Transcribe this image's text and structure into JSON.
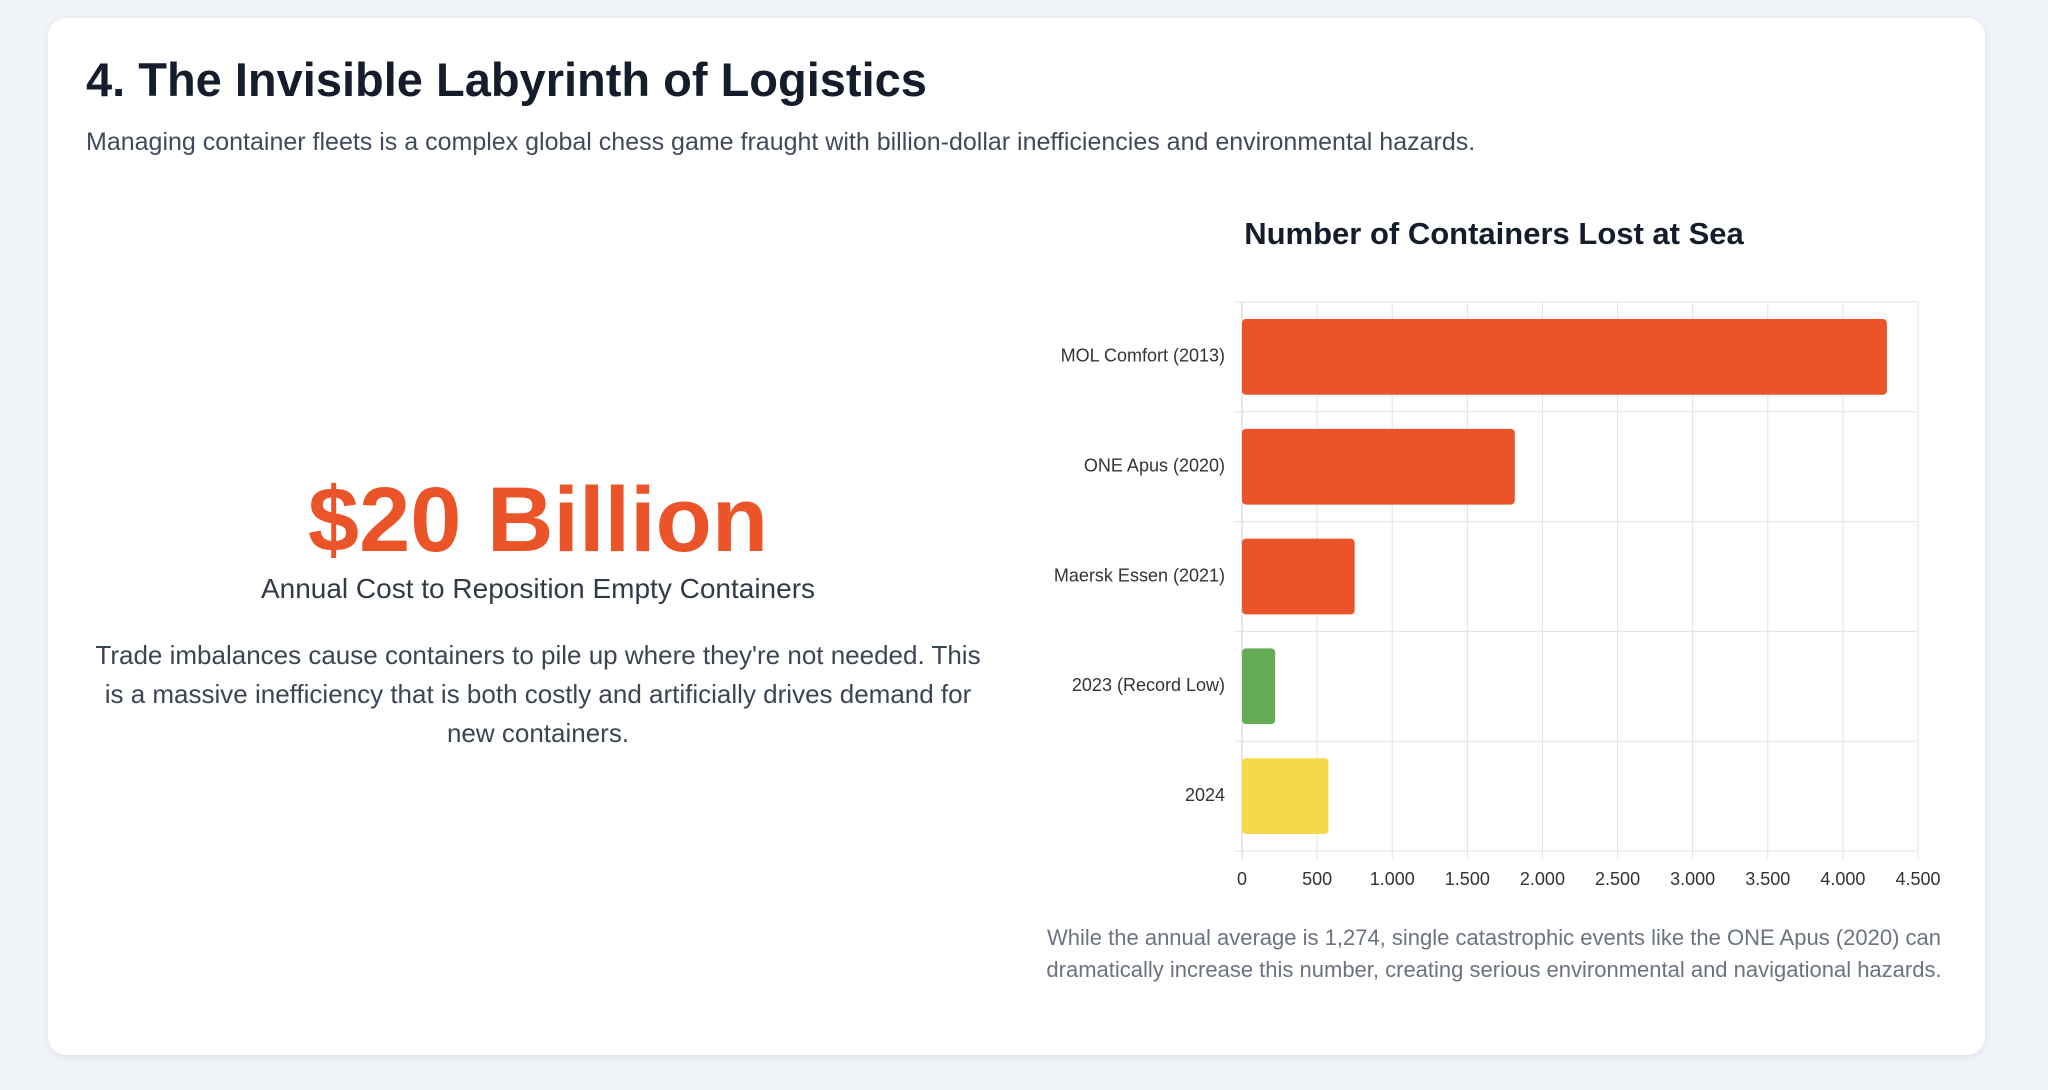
{
  "header": {
    "title": "4. The Invisible Labyrinth of Logistics",
    "subtitle": "Managing container fleets is a complex global chess game fraught with billion-dollar inefficiencies and environmental hazards."
  },
  "stat": {
    "value": "$20 Billion",
    "label": "Annual Cost to Reposition Empty Containers",
    "description": "Trade imbalances cause containers to pile up where they're not needed. This is a massive inefficiency that is both costly and artificially drives demand for new containers."
  },
  "chart_data": {
    "type": "bar",
    "orientation": "horizontal",
    "title": "Number of Containers Lost at Sea",
    "categories": [
      "MOL Comfort (2013)",
      "ONE Apus (2020)",
      "Maersk Essen (2021)",
      "2023 (Record Low)",
      "2024"
    ],
    "values": [
      4293,
      1816,
      750,
      221,
      576
    ],
    "colors": [
      "#ea5428",
      "#ea5428",
      "#ea5428",
      "#66ab55",
      "#f7d84a"
    ],
    "xlim": [
      0,
      4500
    ],
    "xticks": [
      0,
      500,
      {
        "value": 1000,
        "label": "1.000"
      },
      {
        "value": 1500,
        "label": "1.500"
      },
      {
        "value": 2000,
        "label": "2.000"
      },
      {
        "value": 2500,
        "label": "2.500"
      },
      {
        "value": 3000,
        "label": "3.000"
      },
      {
        "value": 3500,
        "label": "3.500"
      },
      {
        "value": 4000,
        "label": "4.000"
      },
      {
        "value": 4500,
        "label": "4.500"
      }
    ],
    "grid": true
  },
  "chart_note": "While the annual average is 1,274, single catastrophic events like the ONE Apus (2020) can dramatically increase this number, creating serious environmental and navigational hazards."
}
